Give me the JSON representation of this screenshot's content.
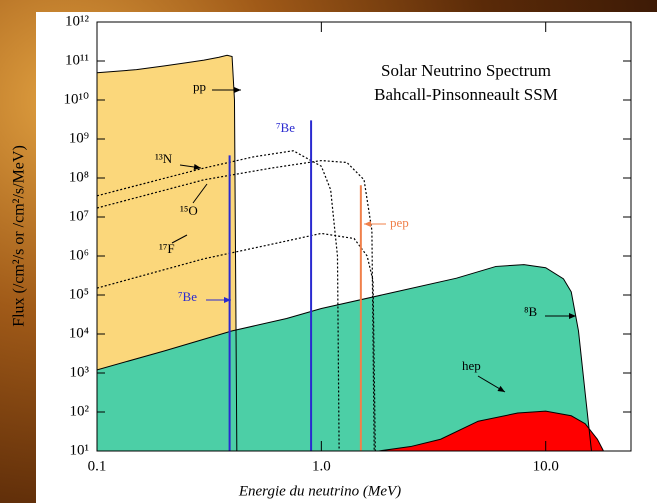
{
  "chart_data": {
    "type": "line",
    "title": "Solar Neutrino Spectrum",
    "subtitle": "Bahcall-Pinsonneault SSM",
    "xlabel": "Energie du neutrino (MeV)",
    "ylabel": "Flux (/cm²/s or /cm²/s/MeV)",
    "log_x": true,
    "log_y": true,
    "xlim": [
      0.1,
      24
    ],
    "ylim": [
      10,
      1000000000000.0
    ],
    "xticks": [
      0.1,
      {
        "value": 1,
        "label": "1.0"
      },
      {
        "value": 10,
        "label": "10.0"
      }
    ],
    "yticks": [
      {
        "value": 10.0,
        "label": "10¹"
      },
      {
        "value": 100.0,
        "label": "10²"
      },
      {
        "value": 1000.0,
        "label": "10³"
      },
      {
        "value": 10000.0,
        "label": "10⁴"
      },
      {
        "value": 100000.0,
        "label": "10⁵"
      },
      {
        "value": 1000000.0,
        "label": "10⁶"
      },
      {
        "value": 10000000.0,
        "label": "10⁷"
      },
      {
        "value": 100000000.0,
        "label": "10⁸"
      },
      {
        "value": 1000000000.0,
        "label": "10⁹"
      },
      {
        "value": 10000000000.0,
        "label": "10¹⁰"
      },
      {
        "value": 100000000000.0,
        "label": "10¹¹"
      },
      {
        "value": 1000000000000.0,
        "label": "10¹²"
      }
    ],
    "series": [
      {
        "name": "pp",
        "color": "#000000",
        "fill": "#fbd77b",
        "dash": false,
        "x": [
          0.1,
          0.15,
          0.2,
          0.25,
          0.3,
          0.35,
          0.38,
          0.4,
          0.41,
          0.42
        ],
        "values": [
          50000000000.0,
          60000000000.0,
          75000000000.0,
          90000000000.0,
          105000000000.0,
          125000000000.0,
          140000000000.0,
          130000000000.0,
          10000000000.0,
          10
        ]
      },
      {
        "name": "⁸B",
        "color": "#000000",
        "fill": "#4ccfa6",
        "dash": false,
        "x": [
          0.1,
          0.2,
          0.4,
          0.7,
          1,
          2,
          4,
          6,
          8,
          10,
          12,
          13,
          14,
          15,
          16
        ],
        "values": [
          1200,
          3700,
          12000,
          25000,
          45000,
          110000,
          270000,
          540000,
          600000,
          500000,
          260000,
          120000,
          12000,
          300,
          10
        ]
      },
      {
        "name": "hep",
        "color": "#000000",
        "fill": "#ff0000",
        "dash": false,
        "x": [
          1.8,
          2.5,
          3.4,
          5,
          7.5,
          10,
          13,
          15,
          17,
          18.1
        ],
        "values": [
          10,
          13,
          20,
          58,
          94,
          105,
          80,
          50,
          20,
          10
        ]
      },
      {
        "name": "¹³N",
        "color": "#000000",
        "dash": true,
        "x": [
          0.1,
          0.3,
          0.5,
          0.75,
          1,
          1.1,
          1.18,
          1.2
        ],
        "values": [
          35000000.0,
          180000000.0,
          350000000.0,
          500000000.0,
          200000000.0,
          50000000.0,
          1000000.0,
          10
        ]
      },
      {
        "name": "¹⁵O",
        "color": "#000000",
        "dash": true,
        "x": [
          0.1,
          0.3,
          0.6,
          1,
          1.3,
          1.55,
          1.68,
          1.72
        ],
        "values": [
          17000000.0,
          90000000.0,
          180000000.0,
          280000000.0,
          250000000.0,
          90000000.0,
          4500000.0,
          10
        ]
      },
      {
        "name": "¹⁷F",
        "color": "#000000",
        "dash": true,
        "x": [
          0.1,
          0.3,
          0.6,
          1,
          1.4,
          1.6,
          1.7,
          1.74
        ],
        "values": [
          150000.0,
          850000.0,
          2000000.0,
          3800000.0,
          2800000.0,
          1000000.0,
          230000.0,
          10
        ]
      }
    ],
    "lines": [
      {
        "name": "⁷Be",
        "color": "#2a2ad0",
        "energy": 0.39,
        "flux": 380000000.0
      },
      {
        "name": "⁷Be",
        "color": "#2a2ad0",
        "energy": 0.9,
        "flux": 3000000000.0
      },
      {
        "name": "pep",
        "color": "#f0804a",
        "energy": 1.5,
        "flux": 65000000.0
      }
    ]
  }
}
